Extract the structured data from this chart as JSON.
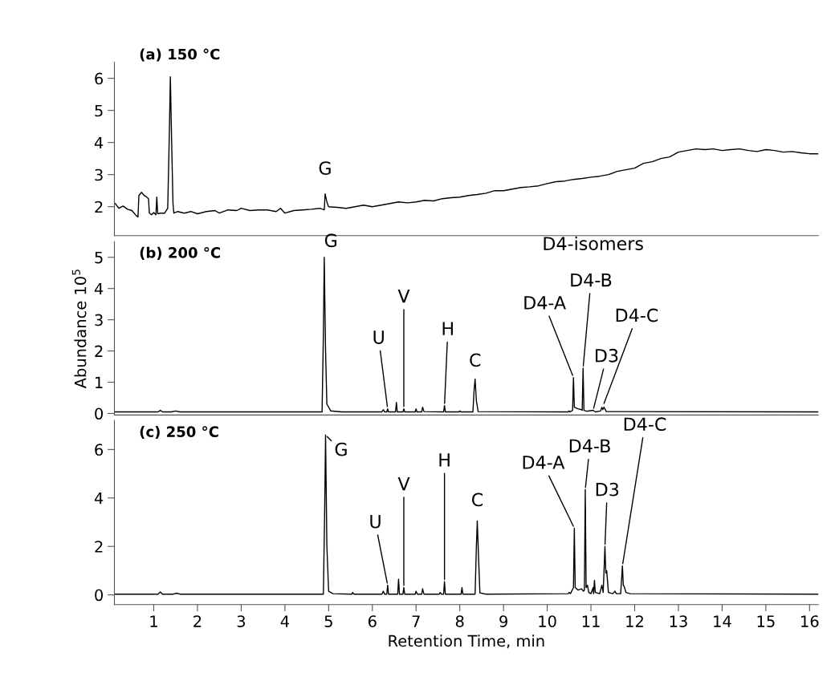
{
  "chart_data": [
    {
      "type": "line",
      "title": "(a) 150 °C",
      "xlim": [
        0.1,
        16.2
      ],
      "ylim": [
        1.1,
        6.5
      ],
      "yticks": [
        2,
        3,
        4,
        5,
        6
      ],
      "tick_labels": "y",
      "series": [
        {
          "color": "#000000",
          "x": [
            0.12,
            0.2,
            0.3,
            0.4,
            0.5,
            0.6,
            0.64,
            0.66,
            0.72,
            0.78,
            0.84,
            0.88,
            0.9,
            0.95,
            1.0,
            1.05,
            1.07,
            1.09,
            1.15,
            1.25,
            1.32,
            1.36,
            1.38,
            1.41,
            1.44,
            1.46,
            1.55,
            1.7,
            1.85,
            2.0,
            2.2,
            2.4,
            2.5,
            2.7,
            2.9,
            3.0,
            3.2,
            3.4,
            3.6,
            3.8,
            3.9,
            4.0,
            4.2,
            4.4,
            4.6,
            4.8,
            4.9,
            4.92,
            4.96,
            5.0,
            5.2,
            5.4,
            5.6,
            5.8,
            6.0,
            6.2,
            6.4,
            6.6,
            6.8,
            7.0,
            7.2,
            7.4,
            7.6,
            7.8,
            8.0,
            8.2,
            8.4,
            8.6,
            8.8,
            9.0,
            9.2,
            9.4,
            9.6,
            9.8,
            10.0,
            10.2,
            10.4,
            10.6,
            10.8,
            11.0,
            11.2,
            11.4,
            11.6,
            11.8,
            12.0,
            12.2,
            12.4,
            12.6,
            12.8,
            13.0,
            13.2,
            13.4,
            13.6,
            13.8,
            14.0,
            14.2,
            14.4,
            14.6,
            14.8,
            15.0,
            15.2,
            15.4,
            15.6,
            15.8,
            16.0,
            16.2
          ],
          "values": [
            2.1,
            1.95,
            2.02,
            1.92,
            1.88,
            1.72,
            1.68,
            2.35,
            2.45,
            2.35,
            2.3,
            2.25,
            1.8,
            1.75,
            1.82,
            1.75,
            2.3,
            1.78,
            1.8,
            1.8,
            1.95,
            4.5,
            6.05,
            4.0,
            2.1,
            1.8,
            1.85,
            1.8,
            1.85,
            1.78,
            1.85,
            1.88,
            1.8,
            1.9,
            1.88,
            1.95,
            1.88,
            1.9,
            1.9,
            1.85,
            1.95,
            1.8,
            1.88,
            1.9,
            1.92,
            1.95,
            1.9,
            2.4,
            2.15,
            2.0,
            1.98,
            1.95,
            2.0,
            2.05,
            2.0,
            2.05,
            2.1,
            2.15,
            2.12,
            2.15,
            2.2,
            2.18,
            2.25,
            2.28,
            2.3,
            2.35,
            2.38,
            2.42,
            2.5,
            2.5,
            2.55,
            2.6,
            2.62,
            2.65,
            2.72,
            2.78,
            2.8,
            2.85,
            2.88,
            2.92,
            2.95,
            3.0,
            3.1,
            3.15,
            3.2,
            3.35,
            3.4,
            3.5,
            3.55,
            3.7,
            3.75,
            3.8,
            3.78,
            3.8,
            3.75,
            3.78,
            3.8,
            3.75,
            3.72,
            3.78,
            3.75,
            3.7,
            3.72,
            3.68,
            3.65,
            3.65
          ]
        }
      ],
      "annotations": [
        {
          "text": "G",
          "x": 4.92,
          "y": 2.4
        }
      ]
    },
    {
      "type": "line",
      "title": "(b) 200 °C",
      "ylabel": "Abundance 10$^{5}$",
      "xlim": [
        0.1,
        16.2
      ],
      "ylim": [
        -0.05,
        5.5
      ],
      "yticks": [
        0,
        1,
        2,
        3,
        4,
        5
      ],
      "tick_labels": "y",
      "series": [
        {
          "color": "#000000",
          "x": [
            0.12,
            1.1,
            1.15,
            1.2,
            1.4,
            1.5,
            1.6,
            4.85,
            4.88,
            4.9,
            4.93,
            4.96,
            5.05,
            5.3,
            6.22,
            6.25,
            6.28,
            6.33,
            6.35,
            6.37,
            6.53,
            6.55,
            6.57,
            6.7,
            6.72,
            6.74,
            6.98,
            7.0,
            7.02,
            7.13,
            7.15,
            7.18,
            7.63,
            7.65,
            7.67,
            7.98,
            8.0,
            8.02,
            8.3,
            8.33,
            8.35,
            8.38,
            8.42,
            10.48,
            10.5,
            10.52,
            10.58,
            10.6,
            10.62,
            10.7,
            10.78,
            10.8,
            10.82,
            10.84,
            10.9,
            11.05,
            11.1,
            11.22,
            11.25,
            11.27,
            11.3,
            11.35,
            16.2
          ],
          "values": [
            0.05,
            0.05,
            0.1,
            0.05,
            0.05,
            0.08,
            0.05,
            0.05,
            2.5,
            5.0,
            2.0,
            0.3,
            0.08,
            0.05,
            0.05,
            0.12,
            0.05,
            0.05,
            0.15,
            0.05,
            0.05,
            0.35,
            0.05,
            0.05,
            0.15,
            0.05,
            0.05,
            0.15,
            0.05,
            0.05,
            0.2,
            0.06,
            0.05,
            0.25,
            0.05,
            0.05,
            0.08,
            0.05,
            0.05,
            0.8,
            1.1,
            0.4,
            0.06,
            0.05,
            0.08,
            0.05,
            0.1,
            1.15,
            0.2,
            0.15,
            0.12,
            0.1,
            1.45,
            0.1,
            0.07,
            0.1,
            0.05,
            0.08,
            0.2,
            0.12,
            0.2,
            0.06,
            0.05
          ]
        }
      ],
      "annotations": [
        {
          "text": "G",
          "x": 4.9,
          "y": 5.0
        },
        {
          "text": "U",
          "x": 6.35,
          "y": 0.15
        },
        {
          "text": "V",
          "x": 6.72,
          "y": 0.15
        },
        {
          "text": "H",
          "x": 7.65,
          "y": 0.25
        },
        {
          "text": "C",
          "x": 8.35,
          "y": 1.1
        },
        {
          "text": "D4-A",
          "x": 10.6,
          "y": 1.15
        },
        {
          "text": "D4-B",
          "x": 10.82,
          "y": 1.45
        },
        {
          "text": "D3",
          "x": 11.05,
          "y": 0.1
        },
        {
          "text": "D4-C",
          "x": 11.28,
          "y": 0.25
        },
        "D4-isomers"
      ]
    },
    {
      "type": "line",
      "title": "(c) 250 °C",
      "xlabel": "Retention Time, min",
      "xlim": [
        0.1,
        16.2
      ],
      "ylim": [
        -0.4,
        7.2
      ],
      "xticks": [
        1,
        2,
        3,
        4,
        5,
        6,
        7,
        8,
        9,
        10,
        11,
        12,
        13,
        14,
        15,
        16
      ],
      "yticks": [
        0,
        2,
        4,
        6
      ],
      "series": [
        {
          "color": "#000000",
          "x": [
            0.12,
            1.1,
            1.15,
            1.2,
            1.45,
            1.52,
            1.6,
            4.88,
            4.91,
            4.93,
            4.96,
            5.0,
            5.1,
            5.53,
            5.55,
            5.58,
            6.22,
            6.25,
            6.28,
            6.33,
            6.35,
            6.37,
            6.58,
            6.6,
            6.62,
            6.7,
            6.72,
            6.74,
            6.98,
            7.0,
            7.03,
            7.13,
            7.15,
            7.18,
            7.53,
            7.55,
            7.58,
            7.63,
            7.65,
            7.67,
            8.03,
            8.05,
            8.07,
            8.35,
            8.38,
            8.4,
            8.43,
            8.46,
            8.6,
            10.48,
            10.5,
            10.53,
            10.6,
            10.62,
            10.64,
            10.7,
            10.78,
            10.83,
            10.85,
            10.87,
            10.89,
            10.92,
            10.95,
            11.0,
            11.05,
            11.06,
            11.08,
            11.1,
            11.2,
            11.25,
            11.28,
            11.32,
            11.34,
            11.36,
            11.4,
            11.5,
            11.55,
            11.58,
            11.68,
            11.72,
            11.74,
            11.76,
            11.8,
            11.9,
            16.2
          ],
          "values": [
            0.03,
            0.03,
            0.12,
            0.03,
            0.03,
            0.07,
            0.03,
            0.03,
            3.5,
            6.6,
            2.0,
            0.15,
            0.05,
            0.03,
            0.1,
            0.03,
            0.03,
            0.15,
            0.03,
            0.03,
            0.4,
            0.03,
            0.03,
            0.65,
            0.03,
            0.03,
            0.3,
            0.03,
            0.03,
            0.15,
            0.03,
            0.03,
            0.25,
            0.03,
            0.03,
            0.1,
            0.03,
            0.03,
            0.55,
            0.03,
            0.03,
            0.3,
            0.03,
            0.03,
            2.0,
            3.05,
            1.5,
            0.08,
            0.03,
            0.05,
            0.1,
            0.05,
            0.3,
            2.75,
            0.3,
            0.2,
            0.25,
            0.15,
            0.2,
            4.35,
            0.3,
            0.4,
            0.1,
            0.05,
            0.3,
            0.05,
            0.6,
            0.1,
            0.05,
            0.4,
            0.1,
            2.0,
            0.9,
            1.0,
            0.1,
            0.05,
            0.15,
            0.05,
            0.05,
            1.2,
            0.4,
            0.35,
            0.1,
            0.05,
            0.03
          ]
        }
      ],
      "annotations": [
        {
          "text": "G",
          "x": 4.93,
          "y": 6.6
        },
        {
          "text": "U",
          "x": 6.35,
          "y": 0.4
        },
        {
          "text": "V",
          "x": 6.72,
          "y": 0.3
        },
        {
          "text": "H",
          "x": 7.65,
          "y": 0.55
        },
        {
          "text": "C",
          "x": 8.4,
          "y": 3.05
        },
        {
          "text": "D4-A",
          "x": 10.62,
          "y": 2.75
        },
        {
          "text": "D4-B",
          "x": 10.87,
          "y": 4.35
        },
        {
          "text": "D3",
          "x": 11.32,
          "y": 2.0
        },
        {
          "text": "D4-C",
          "x": 11.72,
          "y": 1.2
        }
      ]
    }
  ]
}
